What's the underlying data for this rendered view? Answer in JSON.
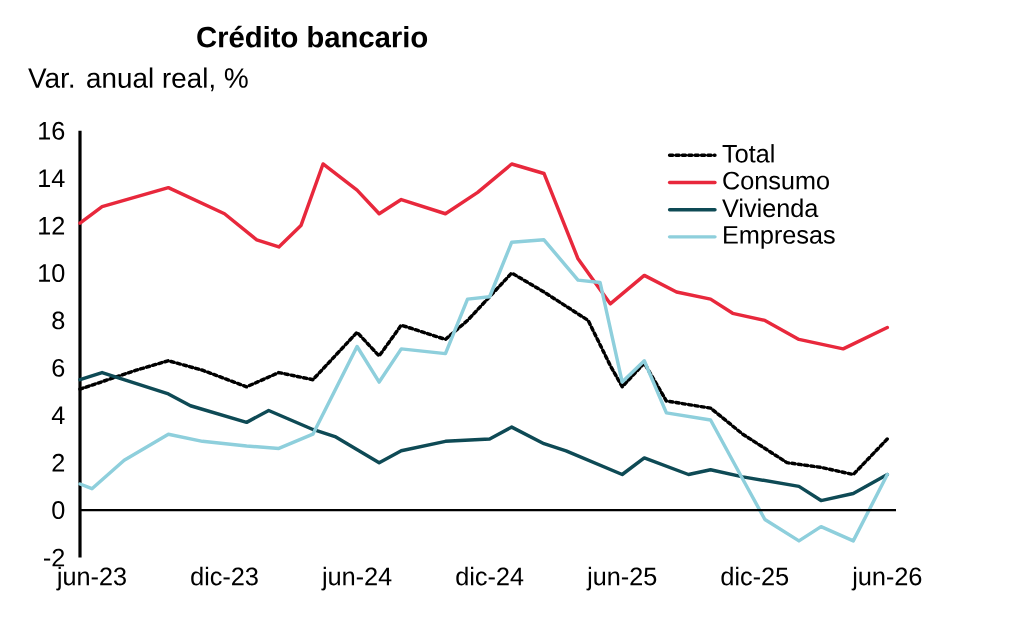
{
  "chart_data": {
    "type": "line",
    "title": "Crédito bancario",
    "ylabel": "Var. anual real, %",
    "xlim": [
      "2023-05-15",
      "2026-06-13"
    ],
    "ylim": [
      -2,
      16
    ],
    "xticks": [
      {
        "value": "2023-06",
        "label": "jun-23"
      },
      {
        "value": "2023-12",
        "label": "dic-23"
      },
      {
        "value": "2024-06",
        "label": "jun-24"
      },
      {
        "value": "2024-12",
        "label": "dic-24"
      },
      {
        "value": "2025-06",
        "label": "jun-25"
      },
      {
        "value": "2025-12",
        "label": "dic-25"
      },
      {
        "value": "2026-06",
        "label": "jun-26"
      }
    ],
    "yticks": [
      -2,
      0,
      2,
      4,
      6,
      8,
      10,
      12,
      14,
      16
    ],
    "grid": false,
    "legend": "top right",
    "series": [
      {
        "name": "Total",
        "color": "#000000",
        "line_style": "dotted",
        "x": [
          "2023-05-15",
          "2023-08-01",
          "2023-09-15",
          "2023-11-01",
          "2024-01-01",
          "2024-02-15",
          "2024-04-01",
          "2024-06-01",
          "2024-07-01",
          "2024-08-01",
          "2024-10-01",
          "2024-11-01",
          "2025-01-01",
          "2025-02-15",
          "2025-04-15",
          "2025-05-15",
          "2025-06-01",
          "2025-07-01",
          "2025-08-01",
          "2025-10-01",
          "2025-11-15",
          "2026-01-15",
          "2026-03-01",
          "2026-04-15",
          "2026-06-01"
        ],
        "values": [
          5.1,
          5.9,
          6.3,
          5.9,
          5.2,
          5.8,
          5.5,
          7.5,
          6.5,
          7.8,
          7.2,
          8.0,
          10.0,
          9.2,
          8.0,
          6.1,
          5.2,
          6.2,
          4.6,
          4.3,
          3.2,
          2.0,
          1.8,
          1.5,
          3.0
        ]
      },
      {
        "name": "Consumo",
        "color": "#e8283c",
        "line_style": "solid",
        "x": [
          "2023-05-15",
          "2023-06-15",
          "2023-09-15",
          "2023-12-01",
          "2024-01-15",
          "2024-02-15",
          "2024-03-15",
          "2024-04-15",
          "2024-06-01",
          "2024-07-01",
          "2024-08-01",
          "2024-10-01",
          "2024-11-15",
          "2025-01-01",
          "2025-02-15",
          "2025-04-01",
          "2025-05-15",
          "2025-07-01",
          "2025-08-15",
          "2025-10-01",
          "2025-11-01",
          "2025-12-15",
          "2026-02-01",
          "2026-04-01",
          "2026-06-01"
        ],
        "values": [
          12.1,
          12.8,
          13.6,
          12.5,
          11.4,
          11.1,
          12.0,
          14.6,
          13.5,
          12.5,
          13.1,
          12.5,
          13.4,
          14.6,
          14.2,
          10.6,
          8.7,
          9.9,
          9.2,
          8.9,
          8.3,
          8.0,
          7.2,
          6.8,
          7.7
        ]
      },
      {
        "name": "Vivienda",
        "color": "#0e4a55",
        "line_style": "solid",
        "x": [
          "2023-05-15",
          "2023-06-15",
          "2023-09-15",
          "2023-10-15",
          "2024-01-01",
          "2024-02-01",
          "2024-04-01",
          "2024-05-01",
          "2024-07-01",
          "2024-08-01",
          "2024-10-01",
          "2024-12-01",
          "2025-01-01",
          "2025-02-15",
          "2025-03-15",
          "2025-06-01",
          "2025-07-01",
          "2025-09-01",
          "2025-10-01",
          "2025-11-15",
          "2026-02-01",
          "2026-03-01",
          "2026-04-15",
          "2026-06-01"
        ],
        "values": [
          5.5,
          5.8,
          4.9,
          4.4,
          3.7,
          4.2,
          3.4,
          3.1,
          2.0,
          2.5,
          2.9,
          3.0,
          3.5,
          2.8,
          2.5,
          1.5,
          2.2,
          1.5,
          1.7,
          1.4,
          1.0,
          0.4,
          0.7,
          1.5
        ]
      },
      {
        "name": "Empresas",
        "color": "#8ecfdc",
        "line_style": "solid",
        "x": [
          "2023-05-15",
          "2023-06-01",
          "2023-07-15",
          "2023-09-15",
          "2023-11-01",
          "2024-01-01",
          "2024-02-15",
          "2024-04-01",
          "2024-06-01",
          "2024-07-01",
          "2024-08-01",
          "2024-10-01",
          "2024-11-01",
          "2024-12-01",
          "2025-01-01",
          "2025-02-15",
          "2025-04-01",
          "2025-05-01",
          "2025-06-01",
          "2025-07-01",
          "2025-08-01",
          "2025-10-01",
          "2025-11-15",
          "2025-12-15",
          "2026-02-01",
          "2026-03-01",
          "2026-04-15",
          "2026-06-01"
        ],
        "values": [
          1.1,
          0.9,
          2.1,
          3.2,
          2.9,
          2.7,
          2.6,
          3.2,
          6.9,
          5.4,
          6.8,
          6.6,
          8.9,
          9.0,
          11.3,
          11.4,
          9.7,
          9.6,
          5.4,
          6.3,
          4.1,
          3.8,
          1.3,
          -0.4,
          -1.3,
          -0.7,
          -1.3,
          1.5
        ]
      }
    ]
  }
}
